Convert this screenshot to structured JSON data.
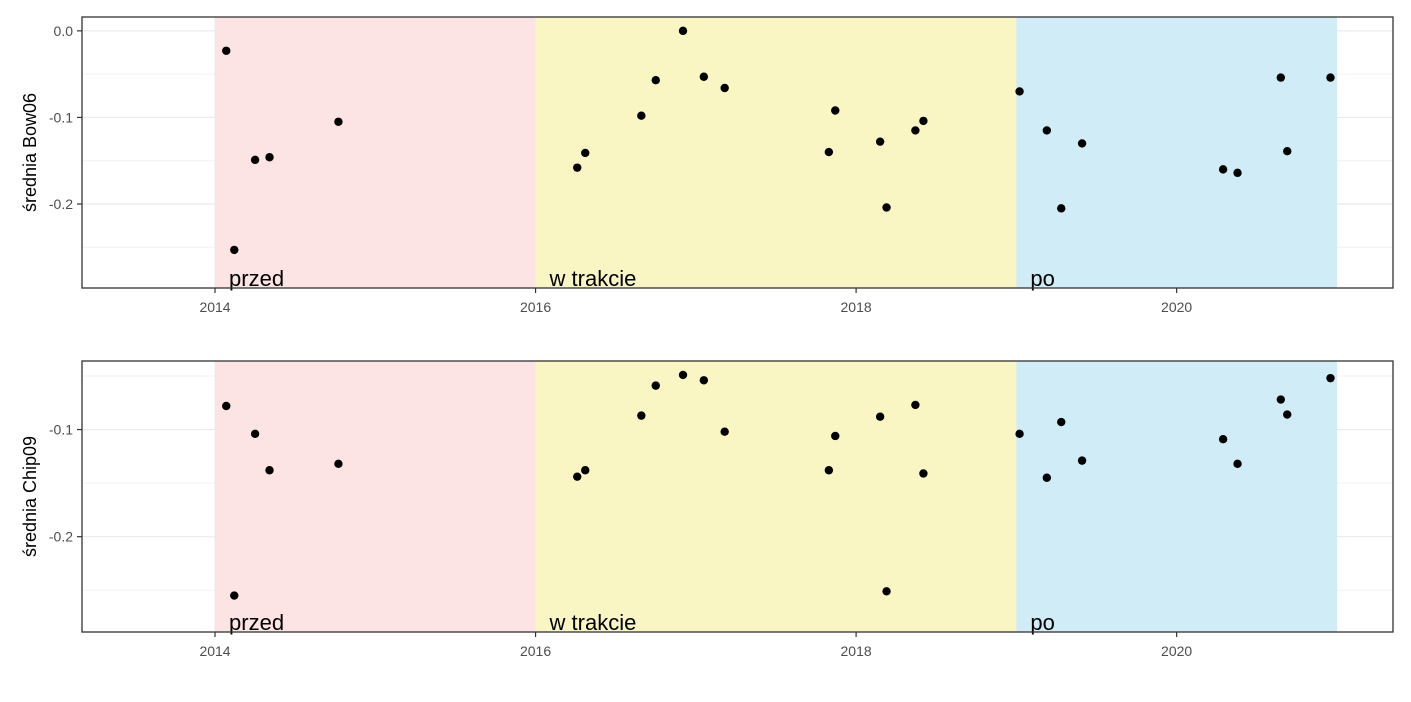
{
  "chart_data": [
    {
      "type": "scatter",
      "ylabel": "średnia Bow06",
      "xlabel": "",
      "xlim": [
        2013.17,
        2021.35
      ],
      "ylim": [
        -0.297,
        0.016
      ],
      "x_ticks": [
        2014,
        2016,
        2018,
        2020
      ],
      "x_tick_labels": [
        "2014",
        "2016",
        "2018",
        "2020"
      ],
      "y_ticks": [
        0.0,
        -0.1,
        -0.2
      ],
      "y_tick_labels": [
        "0.0",
        "-0.1",
        "-0.2"
      ],
      "grid": true,
      "periods": [
        {
          "label": "przed",
          "start": 2014.0,
          "end": 2016.0,
          "color": "#fde4e4"
        },
        {
          "label": "w trakcie",
          "start": 2016.0,
          "end": 2019.0,
          "color": "#faf6c3"
        },
        {
          "label": "po",
          "start": 2019.0,
          "end": 2021.0,
          "color": "#d0ecf7"
        }
      ],
      "points": [
        {
          "x": 2014.07,
          "y": -0.023
        },
        {
          "x": 2014.12,
          "y": -0.253
        },
        {
          "x": 2014.25,
          "y": -0.149
        },
        {
          "x": 2014.34,
          "y": -0.146
        },
        {
          "x": 2014.77,
          "y": -0.105
        },
        {
          "x": 2016.26,
          "y": -0.158
        },
        {
          "x": 2016.31,
          "y": -0.141
        },
        {
          "x": 2016.66,
          "y": -0.098
        },
        {
          "x": 2016.75,
          "y": -0.057
        },
        {
          "x": 2016.92,
          "y": 0.0
        },
        {
          "x": 2017.05,
          "y": -0.053
        },
        {
          "x": 2017.18,
          "y": -0.066
        },
        {
          "x": 2017.83,
          "y": -0.14
        },
        {
          "x": 2017.87,
          "y": -0.092
        },
        {
          "x": 2018.15,
          "y": -0.128
        },
        {
          "x": 2018.19,
          "y": -0.204
        },
        {
          "x": 2018.37,
          "y": -0.115
        },
        {
          "x": 2018.42,
          "y": -0.104
        },
        {
          "x": 2019.02,
          "y": -0.07
        },
        {
          "x": 2019.19,
          "y": -0.115
        },
        {
          "x": 2019.28,
          "y": -0.205
        },
        {
          "x": 2019.41,
          "y": -0.13
        },
        {
          "x": 2020.29,
          "y": -0.16
        },
        {
          "x": 2020.38,
          "y": -0.164
        },
        {
          "x": 2020.65,
          "y": -0.054
        },
        {
          "x": 2020.69,
          "y": -0.139
        },
        {
          "x": 2020.96,
          "y": -0.054
        }
      ]
    },
    {
      "type": "scatter",
      "ylabel": "średnia Chip09",
      "xlabel": "",
      "xlim": [
        2013.17,
        2021.35
      ],
      "ylim": [
        -0.289,
        -0.036
      ],
      "x_ticks": [
        2014,
        2016,
        2018,
        2020
      ],
      "x_tick_labels": [
        "2014",
        "2016",
        "2018",
        "2020"
      ],
      "y_ticks": [
        -0.1,
        -0.2
      ],
      "y_tick_labels": [
        "-0.1",
        "-0.2"
      ],
      "grid": true,
      "periods": [
        {
          "label": "przed",
          "start": 2014.0,
          "end": 2016.0,
          "color": "#fde4e4"
        },
        {
          "label": "w trakcie",
          "start": 2016.0,
          "end": 2019.0,
          "color": "#faf6c3"
        },
        {
          "label": "po",
          "start": 2019.0,
          "end": 2021.0,
          "color": "#d0ecf7"
        }
      ],
      "points": [
        {
          "x": 2014.07,
          "y": -0.078
        },
        {
          "x": 2014.12,
          "y": -0.255
        },
        {
          "x": 2014.25,
          "y": -0.104
        },
        {
          "x": 2014.34,
          "y": -0.138
        },
        {
          "x": 2014.77,
          "y": -0.132
        },
        {
          "x": 2016.26,
          "y": -0.144
        },
        {
          "x": 2016.31,
          "y": -0.138
        },
        {
          "x": 2016.66,
          "y": -0.087
        },
        {
          "x": 2016.75,
          "y": -0.059
        },
        {
          "x": 2016.92,
          "y": -0.049
        },
        {
          "x": 2017.05,
          "y": -0.054
        },
        {
          "x": 2017.18,
          "y": -0.102
        },
        {
          "x": 2017.83,
          "y": -0.138
        },
        {
          "x": 2017.87,
          "y": -0.106
        },
        {
          "x": 2018.15,
          "y": -0.088
        },
        {
          "x": 2018.19,
          "y": -0.251
        },
        {
          "x": 2018.37,
          "y": -0.077
        },
        {
          "x": 2018.42,
          "y": -0.141
        },
        {
          "x": 2019.02,
          "y": -0.104
        },
        {
          "x": 2019.19,
          "y": -0.145
        },
        {
          "x": 2019.28,
          "y": -0.093
        },
        {
          "x": 2019.41,
          "y": -0.129
        },
        {
          "x": 2020.29,
          "y": -0.109
        },
        {
          "x": 2020.38,
          "y": -0.132
        },
        {
          "x": 2020.65,
          "y": -0.072
        },
        {
          "x": 2020.69,
          "y": -0.086
        },
        {
          "x": 2020.96,
          "y": -0.052
        }
      ]
    }
  ]
}
